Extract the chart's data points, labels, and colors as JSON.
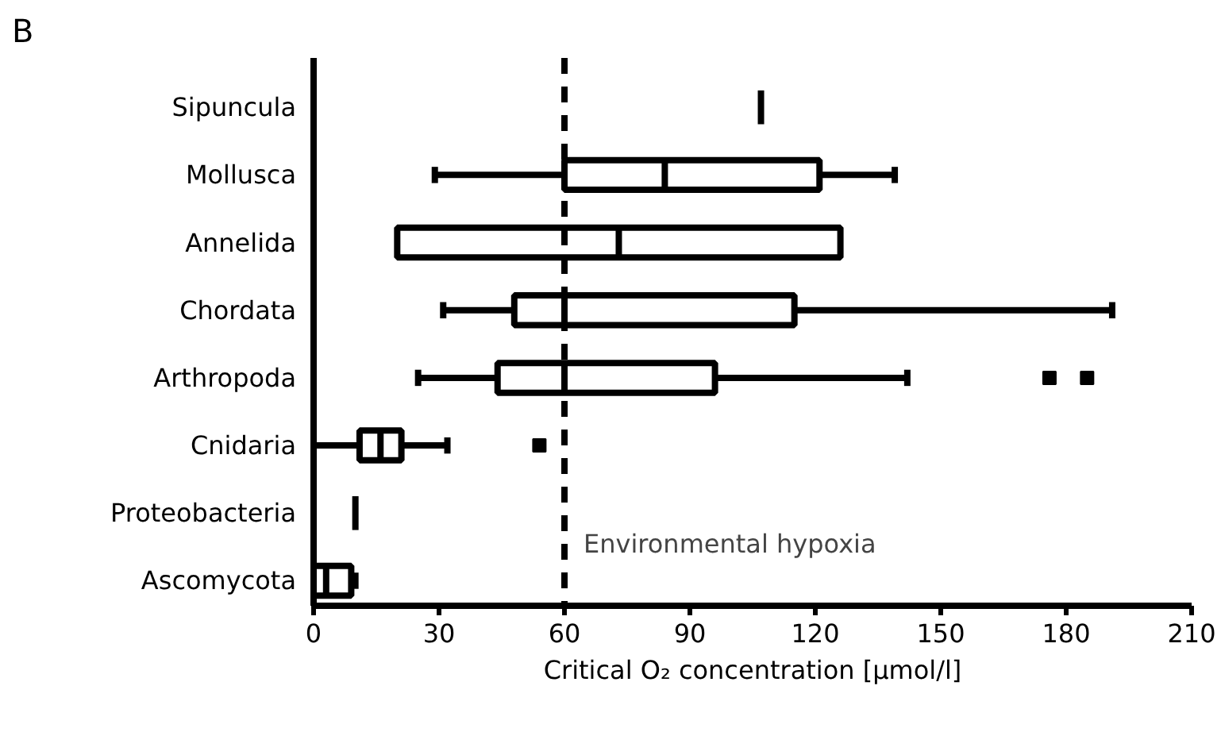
{
  "chart_data": {
    "type": "box",
    "title": "B",
    "xlabel": "Critical O₂ concentration [µmol/l]",
    "orientation": "horizontal",
    "categories": [
      "Sipuncula",
      "Mollusca",
      "Annelida",
      "Chordata",
      "Arthropoda",
      "Cnidaria",
      "Proteobacteria",
      "Ascomycota"
    ],
    "boxes": [
      {
        "low": 107,
        "q1": 107,
        "median": 107,
        "q3": 107,
        "high": 107
      },
      {
        "low": 29,
        "q1": 60,
        "median": 84,
        "q3": 121,
        "high": 139
      },
      {
        "low": 20,
        "q1": 20,
        "median": 73,
        "q3": 126,
        "high": 126
      },
      {
        "low": 31,
        "q1": 48,
        "median": 60,
        "q3": 115,
        "high": 191
      },
      {
        "low": 25,
        "q1": 44,
        "median": 60,
        "q3": 96,
        "high": 142,
        "outliers": [
          176,
          185
        ]
      },
      {
        "low": 0,
        "q1": 11,
        "median": 16,
        "q3": 21,
        "high": 32,
        "outliers": [
          54
        ]
      },
      {
        "low": 10,
        "q1": 10,
        "median": 10,
        "q3": 10,
        "high": 10
      },
      {
        "low": 0,
        "q1": 0,
        "median": 3,
        "q3": 9,
        "high": 10
      }
    ],
    "color": "#000000",
    "xlim": [
      0,
      210
    ],
    "xticks": [
      0,
      30,
      60,
      90,
      120,
      150,
      180,
      210
    ],
    "grid": false,
    "ref_lines": [
      {
        "axis": "x",
        "value": 60,
        "label": "Environmental hypoxia",
        "line_style": "dashed"
      }
    ]
  }
}
